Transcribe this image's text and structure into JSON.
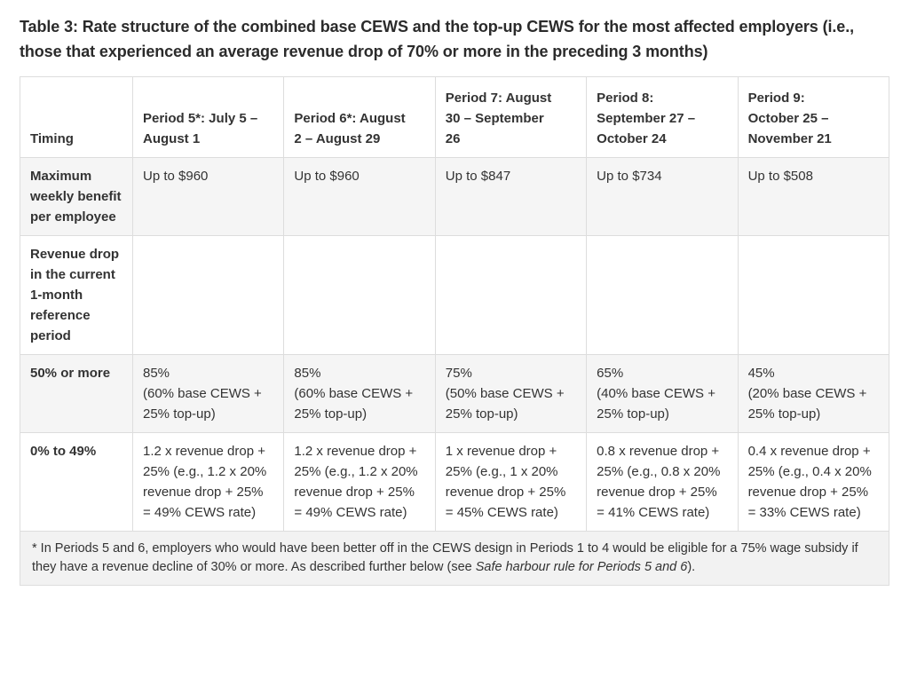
{
  "title": "Table 3: Rate structure of the combined base CEWS and the top-up CEWS for the most affected employers (i.e., those that experienced an average revenue drop of 70% or more in the preceding 3 months)",
  "table": {
    "columns": [
      "Timing",
      "Period 5*: July 5 –\nAugust 1",
      "Period 6*: August\n2 – August 29",
      "Period 7: August\n30 – September\n26",
      "Period 8:\nSeptember 27 –\nOctober 24",
      "Period 9:\nOctober 25 –\nNovember 21"
    ],
    "rows": [
      {
        "header": "Maximum weekly benefit per employee",
        "cells": [
          "Up to $960",
          "Up to $960",
          "Up to $847",
          "Up to $734",
          "Up to $508"
        ]
      },
      {
        "header": "Revenue drop in the current 1-month reference period",
        "cells": [
          "",
          "",
          "",
          "",
          ""
        ]
      },
      {
        "header": "50% or more",
        "cells": [
          "85%\n(60% base CEWS + 25% top-up)",
          "85%\n(60% base CEWS + 25% top-up)",
          "75%\n(50% base CEWS + 25% top-up)",
          "65%\n(40% base CEWS + 25% top-up)",
          "45%\n(20% base CEWS + 25% top-up)"
        ]
      },
      {
        "header": "0% to 49%",
        "cells": [
          "1.2 x revenue drop + 25% (e.g., 1.2 x 20% revenue drop + 25% = 49% CEWS rate)",
          "1.2 x revenue drop + 25% (e.g., 1.2 x 20% revenue drop + 25% = 49% CEWS rate)",
          "1 x revenue drop + 25% (e.g., 1 x 20% revenue drop + 25% = 45% CEWS rate)",
          "0.8 x revenue drop + 25% (e.g., 0.8 x 20% revenue drop + 25% = 41% CEWS rate)",
          "0.4 x revenue drop + 25% (e.g., 0.4 x 20% revenue drop + 25% = 33% CEWS rate)"
        ]
      }
    ],
    "footnote": {
      "before": "* In Periods 5 and 6, employers who would have been better off in the CEWS design in Periods 1 to 4 would be eligible for a 75% wage subsidy if they have a revenue decline of 30% or more. As described further below (see ",
      "italic": "Safe harbour rule for Periods 5 and 6",
      "after": ")."
    }
  },
  "colors": {
    "text": "#333333",
    "title": "#2b2b2b",
    "border": "#dddddd",
    "stripe": "#f5f5f5",
    "footnote_bg": "#f2f2f2",
    "background": "#ffffff"
  }
}
